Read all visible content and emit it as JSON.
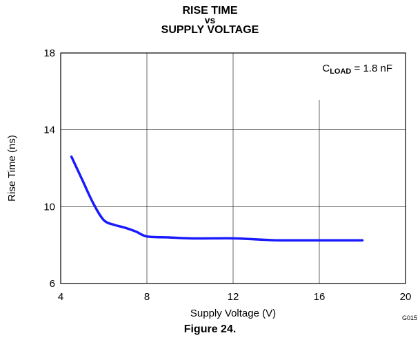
{
  "chart_data": {
    "type": "line",
    "title_lines": [
      "RISE TIME",
      "vs",
      "SUPPLY VOLTAGE"
    ],
    "xlabel": "Supply Voltage (V)",
    "ylabel": "Rise Time (ns)",
    "xlim": [
      4,
      20
    ],
    "ylim": [
      6,
      18
    ],
    "x_ticks": [
      4,
      8,
      12,
      16,
      20
    ],
    "y_ticks": [
      6,
      10,
      14,
      18
    ],
    "x_tick_labels": [
      "4",
      "8",
      "12",
      "16",
      "20"
    ],
    "y_tick_labels": [
      "6",
      "10",
      "14",
      "18"
    ],
    "grid": true,
    "annotation": {
      "prefix": "C",
      "subscript": "LOAD",
      "suffix": " = 1.8 nF"
    },
    "series": [
      {
        "color": "#1a1aff",
        "points": [
          [
            4.5,
            12.6
          ],
          [
            5.0,
            11.4
          ],
          [
            5.5,
            10.2
          ],
          [
            6.0,
            9.3
          ],
          [
            6.5,
            9.05
          ],
          [
            7.0,
            8.9
          ],
          [
            7.5,
            8.7
          ],
          [
            8.0,
            8.45
          ],
          [
            9.0,
            8.4
          ],
          [
            10.0,
            8.35
          ],
          [
            11.0,
            8.35
          ],
          [
            12.0,
            8.35
          ],
          [
            13.0,
            8.3
          ],
          [
            14.0,
            8.25
          ],
          [
            15.0,
            8.25
          ],
          [
            16.0,
            8.25
          ],
          [
            17.0,
            8.25
          ],
          [
            18.0,
            8.25
          ]
        ]
      }
    ]
  },
  "figure_caption": "Figure 24.",
  "figure_code": "G015"
}
